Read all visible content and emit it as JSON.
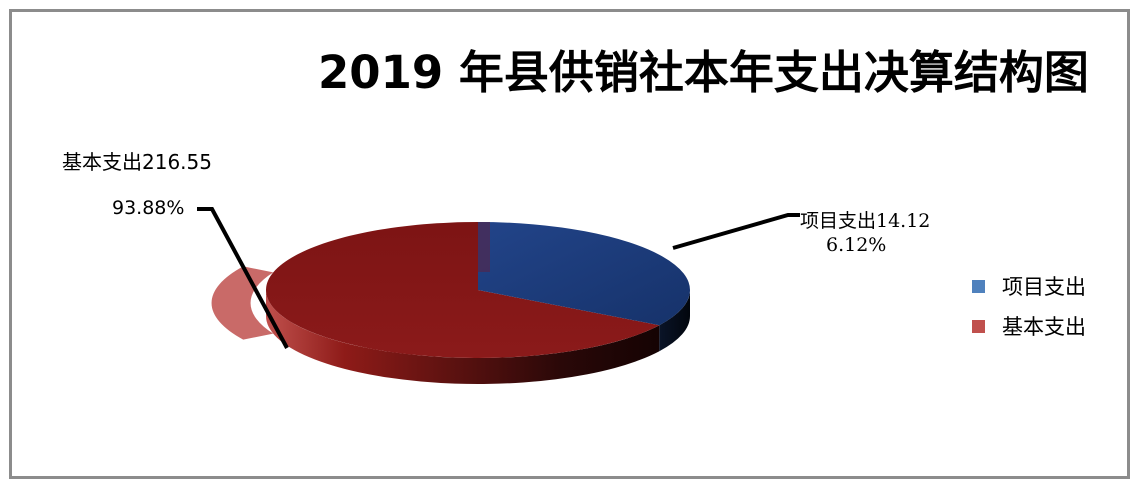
{
  "chart_data": {
    "type": "pie",
    "title": "2019 年县供销社本年支出决算结构图",
    "slices": [
      {
        "name": "项目支出",
        "value": 14.12,
        "percent_label": "6.12%",
        "label": "项目支出14.12",
        "color": "#1f3d7a"
      },
      {
        "name": "基本支出",
        "value": 216.55,
        "percent_label": "93.88%",
        "label": "基本支出216.55",
        "color": "#8b1a1a"
      }
    ],
    "legend": {
      "position": "right",
      "items": [
        {
          "name": "项目支出",
          "color": "#4f81bd"
        },
        {
          "name": "基本支出",
          "color": "#c0504d"
        }
      ]
    }
  }
}
